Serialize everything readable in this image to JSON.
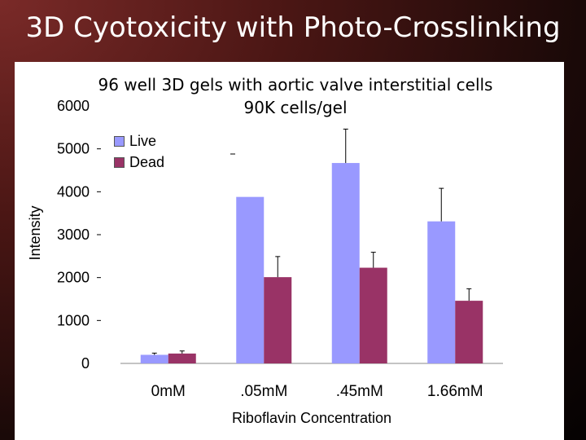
{
  "slide_title": "3D Cyotoxicity with Photo-Crosslinking",
  "colors": {
    "live": "#9999ff",
    "dead": "#993366"
  },
  "chart_data": {
    "type": "bar",
    "title_lines": [
      "96 well 3D gels with aortic valve interstitial cells",
      "90K cells/gel"
    ],
    "xlabel": "Riboflavin Concentration",
    "ylabel": "Intensity",
    "categories": [
      "0mM",
      ".05mM",
      ".45mM",
      "1.66mM"
    ],
    "ylim": [
      0,
      6000
    ],
    "yticks": [
      0,
      1000,
      2000,
      3000,
      4000,
      5000,
      6000
    ],
    "grid": false,
    "legend": "top-left",
    "series": [
      {
        "name": "Live",
        "values": [
          200,
          3880,
          4670,
          3310
        ],
        "errors": [
          40,
          0,
          790,
          770
        ]
      },
      {
        "name": "Dead",
        "values": [
          230,
          2010,
          2230,
          1460
        ],
        "errors": [
          60,
          480,
          360,
          280
        ]
      }
    ]
  }
}
